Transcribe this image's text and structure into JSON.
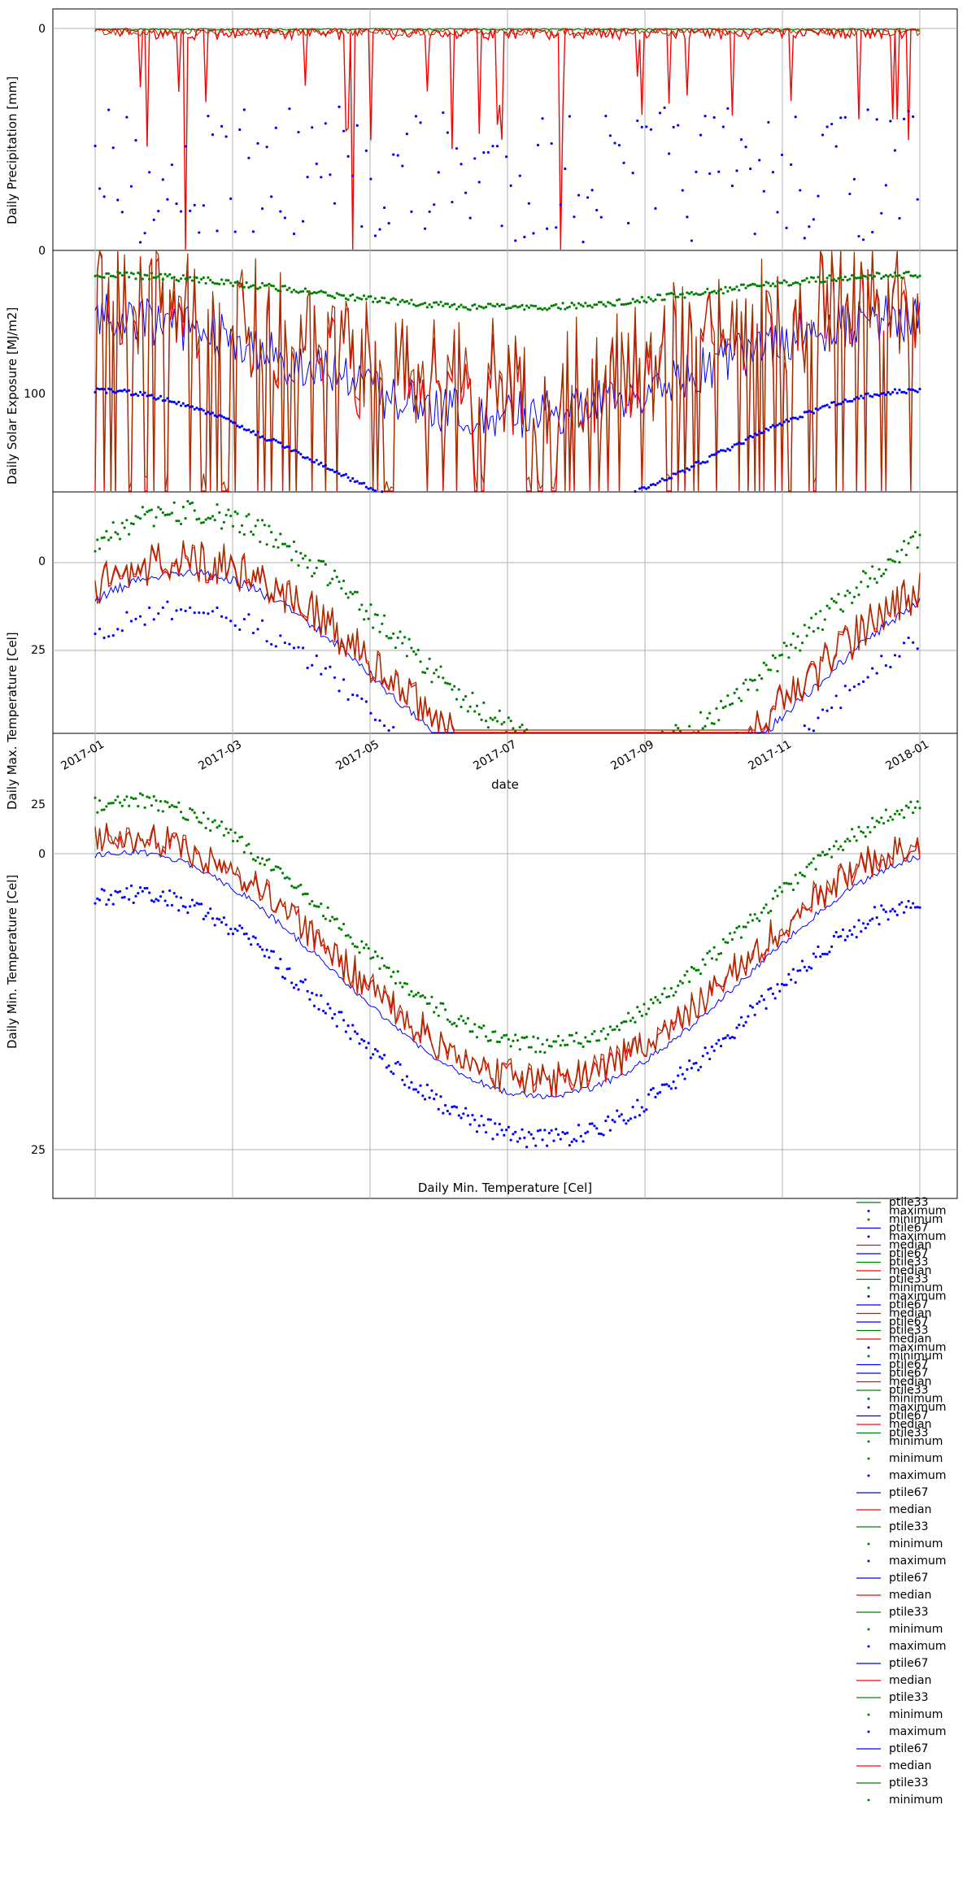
{
  "chart_data": {
    "type": "line",
    "x_axis": {
      "label": "date",
      "ticks": [
        "2017-01",
        "2017-03",
        "2017-05",
        "2017-07",
        "2017-09",
        "2017-11",
        "2018-01"
      ]
    },
    "panels": [
      {
        "ylabel": "Daily Precipitation [mm]",
        "yticks": [
          "0",
          "0"
        ],
        "series_summary": {
          "ptile33_level": 0.1,
          "median_level": 1.0,
          "ptile67_level": 0.1,
          "maximum_band": [
            8,
            20
          ],
          "minimum_level": 0.0
        }
      },
      {
        "ylabel": "Daily Solar Exposure [MJ/m2]",
        "yticks": [
          "100"
        ],
        "series_summary": {
          "minimum_start": 5,
          "minimum_mid": 50,
          "minimum_end": 5,
          "maximum_start": 118,
          "maximum_end": 102
        }
      },
      {
        "ylabel": "Daily Max. Temperature [Cel]",
        "yticks": [
          "0",
          "25"
        ],
        "series_summary": {
          "minimum_start": 0,
          "minimum_peak": -13,
          "minimum_end": -3,
          "median_start": 25,
          "median_peak": 12
        }
      },
      {
        "ylabel": "Daily Min. Temperature [Cel]",
        "title": "Daily Min. Temperature [Cel]",
        "yticks": [
          "25",
          "0",
          "25"
        ],
        "series_summary": {
          "minimum_start": -4,
          "minimum_mid": 17,
          "minimum_end": -5,
          "median_start": 0,
          "median_mid": 20.5,
          "median_end": 0,
          "maximum_start": 4,
          "maximum_mid": 25,
          "maximum_end": 3
        }
      }
    ],
    "legend": {
      "location": "bottom-right, outside plot",
      "labels": [
        "ptile33",
        "maximum",
        "minimum",
        "ptile67",
        "maximum",
        "median",
        "ptile67",
        "ptile33",
        "median",
        "ptile33",
        "minimum",
        "maximum",
        "ptile67",
        "median",
        "ptile67",
        "ptile33",
        "median",
        "maximum",
        "minimum",
        "ptile67",
        "ptile67",
        "median",
        "ptile33",
        "minimum",
        "maximum",
        "ptile67",
        "median",
        "ptile33",
        "minimum",
        "minimum",
        "maximum",
        "ptile67",
        "median",
        "ptile33",
        "minimum",
        "maximum",
        "ptile67",
        "median",
        "ptile33",
        "minimum",
        "maximum",
        "ptile67",
        "median",
        "ptile33",
        "minimum",
        "maximum",
        "ptile67",
        "median",
        "ptile33",
        "minimum"
      ]
    },
    "colors": {
      "median": "#ff0000",
      "ptile33": "#008000",
      "ptile67": "#0000ff",
      "overlay": "#993300",
      "maximum": "#0000ff",
      "minimum": "#008000",
      "grid": "#b0b0b0"
    },
    "grid": true
  }
}
